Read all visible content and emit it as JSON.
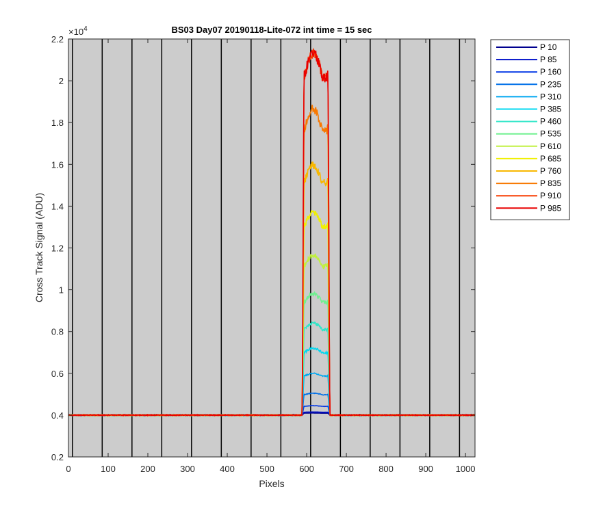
{
  "chart_data": {
    "type": "line",
    "title": "BS03 Day07 20190118-Lite-072 int time = 15 sec",
    "xlabel": "Pixels",
    "ylabel": "Cross Track Signal (ADU)",
    "y_exponent_label": "×10",
    "y_exponent_power": "4",
    "xlim": [
      0,
      1024
    ],
    "ylim": [
      0.2,
      2.2
    ],
    "y_scale_factor": 10000,
    "x_ticks": [
      0,
      100,
      200,
      300,
      400,
      500,
      600,
      700,
      800,
      900,
      1000
    ],
    "y_ticks": [
      0.2,
      0.4,
      0.6,
      0.8,
      1,
      1.2,
      1.4,
      1.6,
      1.8,
      2,
      2.2
    ],
    "x_tick_labels": [
      "0",
      "100",
      "200",
      "300",
      "400",
      "500",
      "600",
      "700",
      "800",
      "900",
      "1000"
    ],
    "y_tick_labels": [
      "0.2",
      "0.4",
      "0.6",
      "0.8",
      "1",
      "1.2",
      "1.4",
      "1.6",
      "1.8",
      "2",
      "2.2"
    ],
    "vertical_lines_x": [
      10,
      85,
      160,
      235,
      310,
      385,
      460,
      535,
      610,
      685,
      760,
      835,
      910,
      985
    ],
    "background_color": "#cccccc",
    "grid": false,
    "legend_position": "outside-top-right",
    "baseline": 0.4,
    "plateau_range": [
      590,
      657
    ],
    "series": [
      {
        "name": "P 10",
        "color": "#00008f",
        "peak": 0.41
      },
      {
        "name": "P 85",
        "color": "#0010c8",
        "peak": 0.415
      },
      {
        "name": "P 160",
        "color": "#0036e6",
        "peak": 0.445
      },
      {
        "name": "P 235",
        "color": "#0070e8",
        "peak": 0.505
      },
      {
        "name": "P 310",
        "color": "#00a8f0",
        "peak": 0.6
      },
      {
        "name": "P 385",
        "color": "#00d8f0",
        "peak": 0.72
      },
      {
        "name": "P 460",
        "color": "#30e6c8",
        "peak": 0.84
      },
      {
        "name": "P 535",
        "color": "#70f090",
        "peak": 0.98
      },
      {
        "name": "P 610",
        "color": "#c0f040",
        "peak": 1.165
      },
      {
        "name": "P 685",
        "color": "#f0f000",
        "peak": 1.37
      },
      {
        "name": "P 760",
        "color": "#f8b800",
        "peak": 1.595
      },
      {
        "name": "P 835",
        "color": "#f87800",
        "peak": 1.865
      },
      {
        "name": "P 910",
        "color": "#f83c00",
        "peak": 2.135
      },
      {
        "name": "P 985",
        "color": "#e80000",
        "peak": 2.135
      }
    ]
  }
}
